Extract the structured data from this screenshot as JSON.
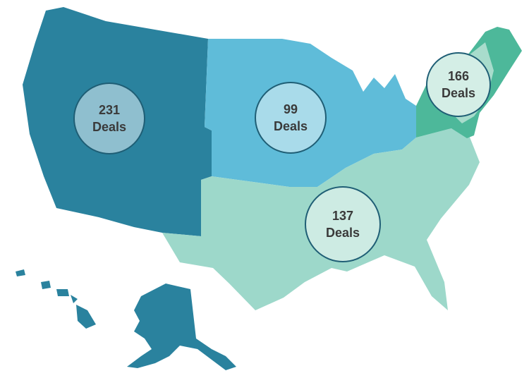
{
  "regions": [
    {
      "count": 231,
      "label": "Deals"
    },
    {
      "count": 99,
      "label": "Deals"
    },
    {
      "count": 166,
      "label": "Deals"
    },
    {
      "count": 137,
      "label": "Deals"
    }
  ]
}
